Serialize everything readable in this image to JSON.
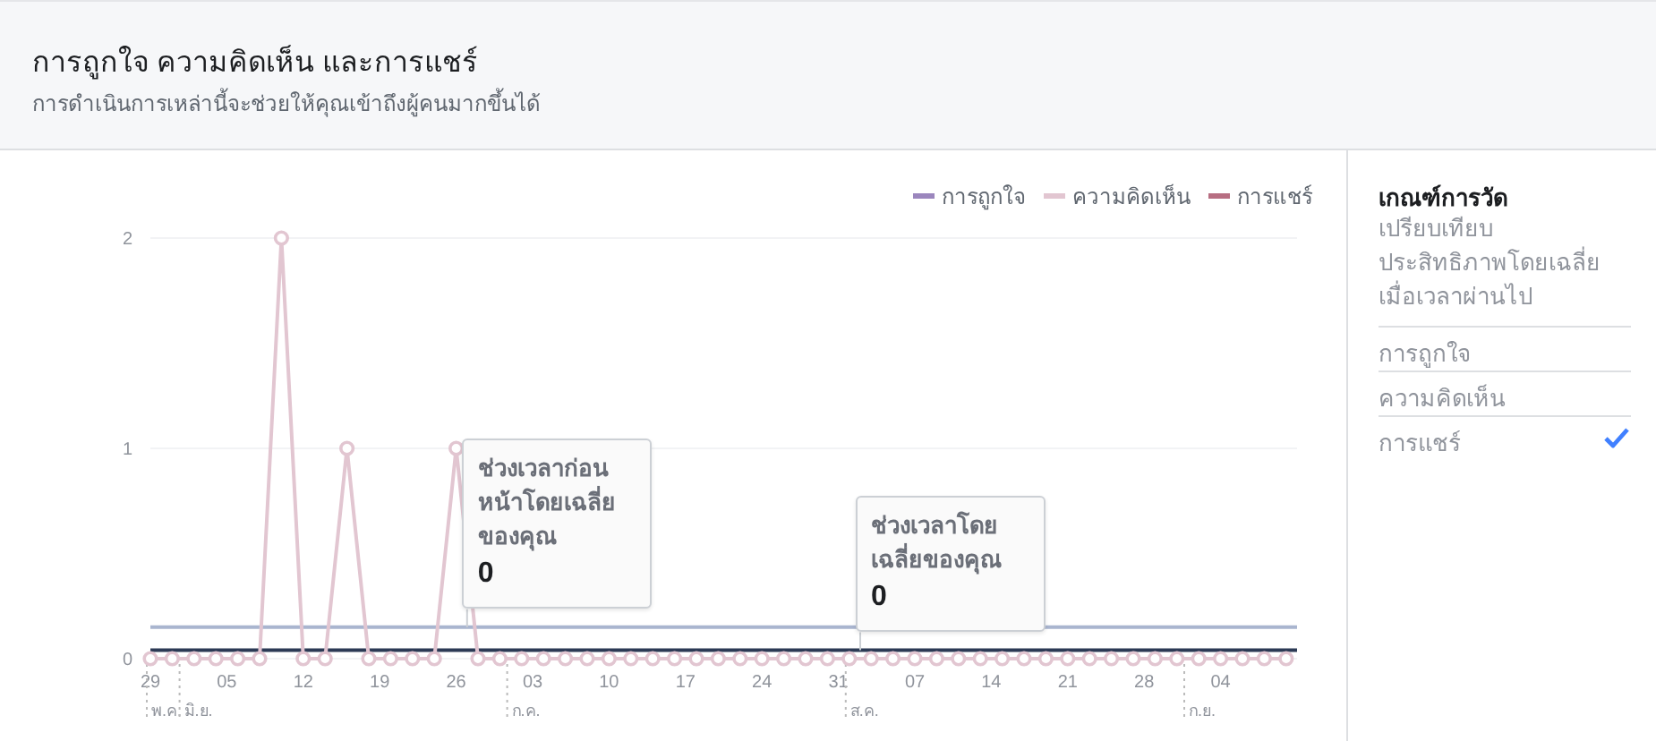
{
  "chart_data": [
    {
      "type": "line",
      "title": "การถูกใจ ความคิดเห็น และการแชร์",
      "subtitle": "การดำเนินการเหล่านี้จะช่วยให้คุณเข้าถึงผู้คนมากขึ้นได้",
      "x": [
        "--05-29",
        "--05-31",
        "--06-02",
        "--06-04",
        "--06-06",
        "--06-08",
        "--06-10",
        "--06-12",
        "--06-14",
        "--06-16",
        "--06-18",
        "--06-20",
        "--06-22",
        "--06-24",
        "--06-26",
        "--06-28",
        "--06-30",
        "--07-02",
        "--07-04",
        "--07-06",
        "--07-08",
        "--07-10",
        "--07-12",
        "--07-14",
        "--07-16",
        "--07-18",
        "--07-20",
        "--07-22",
        "--07-24",
        "--07-26",
        "--07-28",
        "--07-30",
        "--08-01",
        "--08-03",
        "--08-05",
        "--08-07",
        "--08-09",
        "--08-11",
        "--08-13",
        "--08-15",
        "--08-17",
        "--08-19",
        "--08-21",
        "--08-23",
        "--08-25",
        "--08-27",
        "--08-29",
        "--08-31",
        "--09-02",
        "--09-04",
        "--09-06",
        "--09-08",
        "--09-10"
      ],
      "series": [
        {
          "name": "การถูกใจ",
          "color": "#9b86bd",
          "values": [
            null,
            null,
            null,
            null,
            null,
            null,
            null,
            null,
            null,
            null,
            null,
            null,
            null,
            null,
            null,
            null,
            null,
            null,
            null,
            null,
            null,
            null,
            null,
            null,
            null,
            null,
            null,
            null,
            null,
            null,
            null,
            null,
            null,
            null,
            null,
            null,
            null,
            null,
            null,
            null,
            null,
            null,
            null,
            null,
            null,
            null,
            null,
            null,
            null,
            null,
            null,
            null,
            null
          ]
        },
        {
          "name": "ความคิดเห็น",
          "color": "#e2c6d1",
          "marker": "circle",
          "values": [
            0,
            0,
            0,
            0,
            0,
            0,
            2,
            0,
            0,
            1,
            0,
            0,
            0,
            0,
            1,
            0,
            0,
            0,
            0,
            0,
            0,
            0,
            0,
            0,
            0,
            0,
            0,
            0,
            0,
            0,
            0,
            0,
            0,
            0,
            0,
            0,
            0,
            0,
            0,
            0,
            0,
            0,
            0,
            0,
            0,
            0,
            0,
            0,
            0,
            0,
            0,
            0,
            0
          ]
        },
        {
          "name": "การแชร์",
          "color": "#b76e82",
          "values": [
            null,
            null,
            null,
            null,
            null,
            null,
            null,
            null,
            null,
            null,
            null,
            null,
            null,
            null,
            null,
            null,
            null,
            null,
            null,
            null,
            null,
            null,
            null,
            null,
            null,
            null,
            null,
            null,
            null,
            null,
            null,
            null,
            null,
            null,
            null,
            null,
            null,
            null,
            null,
            null,
            null,
            null,
            null,
            null,
            null,
            null,
            null,
            null,
            null,
            null,
            null,
            null,
            null
          ]
        }
      ],
      "xlim": [
        "--05-29",
        "--09-11"
      ],
      "xticks": [
        {
          "value": "--05-29",
          "label": "29"
        },
        {
          "value": "--06-05",
          "label": "05"
        },
        {
          "value": "--06-12",
          "label": "12"
        },
        {
          "value": "--06-19",
          "label": "19"
        },
        {
          "value": "--06-26",
          "label": "26"
        },
        {
          "value": "--07-03",
          "label": "03"
        },
        {
          "value": "--07-10",
          "label": "10"
        },
        {
          "value": "--07-17",
          "label": "17"
        },
        {
          "value": "--07-24",
          "label": "24"
        },
        {
          "value": "--07-31",
          "label": "31"
        },
        {
          "value": "--08-07",
          "label": "07"
        },
        {
          "value": "--08-14",
          "label": "14"
        },
        {
          "value": "--08-21",
          "label": "21"
        },
        {
          "value": "--08-28",
          "label": "28"
        },
        {
          "value": "--09-04",
          "label": "04"
        }
      ],
      "ylim": [
        0,
        2
      ],
      "yticks": [
        0,
        1,
        2
      ],
      "grid": "y",
      "legend": "top right",
      "line_style": "solid",
      "ref_lines": [
        {
          "axis": "y",
          "value": 0.15,
          "color": "#a9b5cf"
        },
        {
          "axis": "y",
          "value": 0.04,
          "color": "#2c3a55"
        },
        {
          "axis": "x",
          "value": "--05-29",
          "label": "พ.ค.",
          "line_style": "dotted"
        },
        {
          "axis": "x",
          "value": "--06-01",
          "label": "มิ.ย.",
          "line_style": "dotted"
        },
        {
          "axis": "x",
          "value": "--07-01",
          "label": "ก.ค.",
          "line_style": "dotted"
        },
        {
          "axis": "x",
          "value": "--08-01",
          "label": "ส.ค.",
          "line_style": "dotted"
        },
        {
          "axis": "x",
          "value": "--09-01",
          "label": "ก.ย.",
          "line_style": "dotted"
        }
      ],
      "annotations": [
        {
          "text": "ช่วงเวลาก่อนหน้าโดยเฉลี่ยของคุณ\n0",
          "x": "--06-27",
          "y": 0.15
        },
        {
          "text": "ช่วงเวลาโดยเฉลี่ยของคุณ\n0",
          "x": "--08-02",
          "y": 0.04
        }
      ]
    },
    {
      "type": "other",
      "title": "เกณฑ์การวัด",
      "subtitle": "เปรียบเทียบประสิทธิภาพโดยเฉลี่ยเมื่อเวลาผ่านไป",
      "annotations": [
        "การถูกใจ",
        "ความคิดเห็น",
        "การแชร์"
      ]
    }
  ]
}
